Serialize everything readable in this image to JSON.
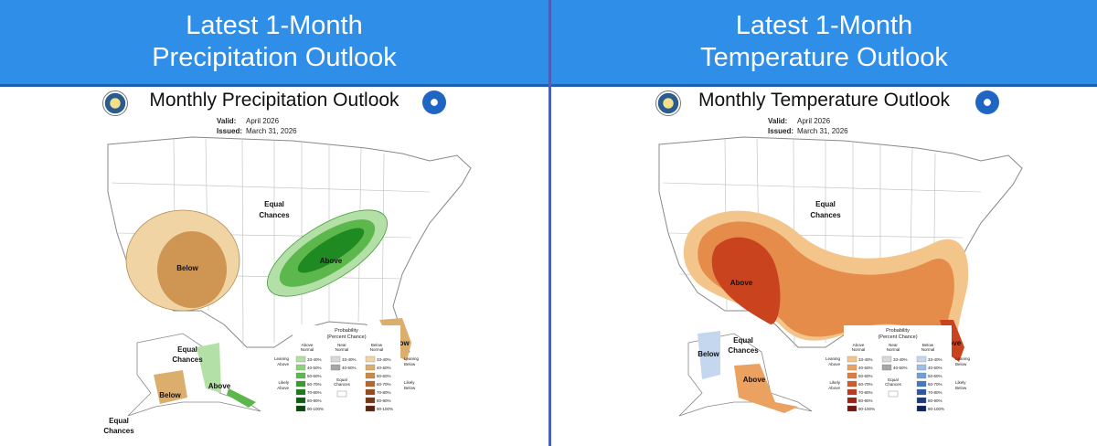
{
  "left": {
    "header_line1": "Latest 1-Month",
    "header_line2": "Precipitation Outlook",
    "map_title": "Monthly Precipitation Outlook",
    "valid_label": "Valid:",
    "valid_value": "April 2026",
    "issued_label": "Issued:",
    "issued_value": "March 31, 2026",
    "labels": {
      "equal_chances_main": [
        "Equal",
        "Chances"
      ],
      "below": "Below",
      "above": "Above",
      "below_fl": "Below",
      "equal_chances_ak": [
        "Equal",
        "Chances"
      ],
      "below_ak": "Below",
      "above_ak": "Above",
      "equal_chances_ak2": [
        "Equal",
        "Chances"
      ]
    },
    "legend": {
      "title": [
        "Probability",
        "(Percent Chance)"
      ],
      "col_headers": [
        [
          "Above",
          "Normal"
        ],
        [
          "Near",
          "Normal"
        ],
        [
          "Below",
          "Normal"
        ]
      ],
      "side_left": [
        [
          "Leaning",
          "Above"
        ],
        [
          "Likely",
          "Above"
        ]
      ],
      "side_right": [
        [
          "Leaning",
          "Below"
        ],
        [
          "Likely",
          "Below"
        ]
      ],
      "equal_chances": [
        "Equal",
        "Chances"
      ],
      "ranges": [
        "33-40%",
        "40-50%",
        "50-60%",
        "60-70%",
        "70-80%",
        "80-90%",
        "90-100%"
      ],
      "near_ranges": [
        "33-40%",
        "40-50%"
      ],
      "above_colors": [
        "#b3e0a6",
        "#8fd27c",
        "#5cb84d",
        "#3a9a2e",
        "#1f7a1c",
        "#0d5e13",
        "#084a0e"
      ],
      "near_colors": [
        "#d9d9d9",
        "#a6a6a6"
      ],
      "below_colors": [
        "#f0d4a3",
        "#dcae6e",
        "#c98a45",
        "#b3692b",
        "#964b1c",
        "#7a3413",
        "#5c230c"
      ]
    }
  },
  "right": {
    "header_line1": "Latest 1-Month",
    "header_line2": "Temperature Outlook",
    "map_title": "Monthly Temperature Outlook",
    "valid_label": "Valid:",
    "valid_value": "April 2026",
    "issued_label": "Issued:",
    "issued_value": "March 31, 2026",
    "labels": {
      "equal_chances_main": [
        "Equal",
        "Chances"
      ],
      "above": "Above",
      "above_fl": "Above",
      "below_ak": "Below",
      "equal_chances_ak": [
        "Equal",
        "Chances"
      ],
      "above_ak": "Above"
    },
    "legend": {
      "title": [
        "Probability",
        "(Percent Chance)"
      ],
      "col_headers": [
        [
          "Above",
          "Normal"
        ],
        [
          "Near",
          "Normal"
        ],
        [
          "Below",
          "Normal"
        ]
      ],
      "side_left": [
        [
          "Leaning",
          "Above"
        ],
        [
          "Likely",
          "Above"
        ]
      ],
      "side_right": [
        [
          "Leaning",
          "Below"
        ],
        [
          "Likely",
          "Below"
        ]
      ],
      "equal_chances": [
        "Equal",
        "Chances"
      ],
      "ranges": [
        "33-40%",
        "40-50%",
        "50-60%",
        "60-70%",
        "70-80%",
        "80-90%",
        "90-100%"
      ],
      "near_ranges": [
        "33-40%",
        "40-50%"
      ],
      "above_colors": [
        "#f3c58a",
        "#eba15f",
        "#e07b3e",
        "#d4582a",
        "#bf3a1c",
        "#9c2314",
        "#74160e"
      ],
      "near_colors": [
        "#d9d9d9",
        "#a6a6a6"
      ],
      "below_colors": [
        "#c5d7ee",
        "#9fbde6",
        "#6f9fd8",
        "#4479c2",
        "#2a57a3",
        "#1b3a82",
        "#0f2260"
      ]
    }
  },
  "colors": {
    "header_bg": "#2f8ee8",
    "divider": "#4a5fb5",
    "precip_above": "#3ba43a",
    "precip_below": "#d9a85f",
    "temp_above": "#e8904f"
  }
}
